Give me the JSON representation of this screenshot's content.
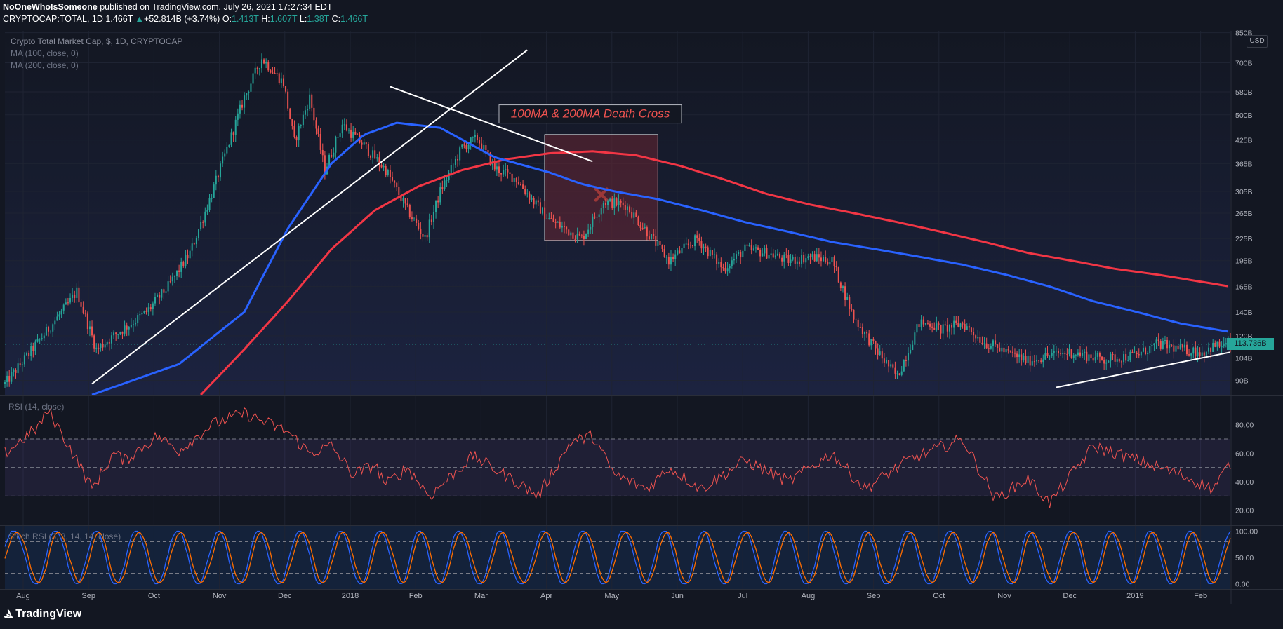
{
  "header": {
    "publisher": "NoOneWhoIsSomeone",
    "published_text": "published on TradingView.com, July 26, 2021 17:27:34 EDT",
    "symbol": "CRYPTOCAP:TOTAL, 1D",
    "last": "1.466T",
    "change_arrow": "▲",
    "change": "+52.814B (+3.74%)",
    "o_label": "O:",
    "o_value": "1.413T",
    "h_label": "H:",
    "h_value": "1.607T",
    "l_label": "L:",
    "l_value": "1.38T",
    "c_label": "C:",
    "c_value": "1.466T"
  },
  "legend": {
    "title": "Crypto Total Market Cap, $, 1D, CRYPTOCAP",
    "ma100": "MA (100, close, 0)",
    "ma200": "MA (200, close, 0)",
    "rsi": "RSI (14, close)",
    "stoch": "Stoch RSI (3, 3, 14, 14, close)"
  },
  "annotation": {
    "text": "100MA & 200MA Death Cross"
  },
  "currency_badge": "USD",
  "last_price_label": "113.736B",
  "footer": {
    "logo": "TradingView",
    "logo_mark": "Ⳛ"
  },
  "colors": {
    "background": "#131722",
    "up": "#26a69a",
    "down": "#ef5350",
    "ma100": "#2962ff",
    "ma200": "#f23645",
    "rsi": "#ef5350",
    "stoch_k": "#2962ff",
    "stoch_d": "#ff6d00",
    "trendline": "#ffffff"
  },
  "chart_data": [
    {
      "type": "candlestick",
      "title": "Crypto Total Market Cap, $, 1D, CRYPTOCAP",
      "x_ticks": [
        "Aug",
        "Sep",
        "Oct",
        "Nov",
        "Dec",
        "2018",
        "Feb",
        "Mar",
        "Apr",
        "May",
        "Jun",
        "Jul",
        "Aug",
        "Sep",
        "Oct",
        "Nov",
        "Dec",
        "2019",
        "Feb"
      ],
      "y_scale": "log",
      "y_ticks": [
        "850B",
        "700B",
        "580B",
        "500B",
        "425B",
        "365B",
        "305B",
        "265B",
        "225B",
        "195B",
        "165B",
        "140B",
        "120B",
        "104B",
        "90B"
      ],
      "y_tick_values": [
        850,
        700,
        580,
        500,
        425,
        365,
        305,
        265,
        225,
        195,
        165,
        140,
        120,
        104,
        90
      ],
      "y_unit": "B USD",
      "y_range": [
        82,
        860
      ],
      "x_range_days": [
        0,
        563
      ],
      "price_path_days": [
        0,
        30,
        33,
        42,
        50,
        65,
        75,
        85,
        95,
        110,
        118,
        128,
        133,
        140,
        147,
        155,
        165,
        175,
        185,
        193,
        200,
        210,
        217,
        225,
        235,
        243,
        250,
        257,
        265,
        275,
        285,
        295,
        305,
        318,
        330,
        340,
        350,
        360,
        370,
        380,
        390,
        400,
        410,
        420,
        425,
        430,
        440,
        450,
        455,
        460,
        465,
        470,
        480,
        490,
        505,
        520,
        530,
        540,
        550,
        555,
        563
      ],
      "price_path_values": [
        88,
        150,
        160,
        110,
        120,
        140,
        165,
        205,
        300,
        560,
        720,
        615,
        420,
        560,
        350,
        470,
        410,
        350,
        270,
        225,
        305,
        405,
        430,
        355,
        330,
        285,
        255,
        240,
        225,
        285,
        280,
        235,
        195,
        225,
        185,
        210,
        205,
        195,
        200,
        195,
        135,
        110,
        92,
        130,
        130,
        125,
        130,
        115,
        112,
        108,
        105,
        102,
        106,
        108,
        103,
        106,
        114,
        110,
        108,
        112,
        113.7
      ],
      "series": [
        {
          "name": "MA (100, close, 0)",
          "x_days": [
            40,
            80,
            110,
            130,
            150,
            165,
            180,
            200,
            225,
            250,
            265,
            280,
            300,
            320,
            340,
            360,
            380,
            400,
            420,
            440,
            460,
            480,
            500,
            520,
            540,
            563
          ],
          "values": [
            82,
            100,
            140,
            240,
            365,
            440,
            475,
            460,
            380,
            345,
            320,
            305,
            290,
            270,
            250,
            235,
            220,
            210,
            200,
            190,
            178,
            165,
            150,
            140,
            130,
            123
          ]
        },
        {
          "name": "MA (200, close, 0)",
          "x_days": [
            90,
            110,
            130,
            150,
            170,
            190,
            210,
            230,
            250,
            270,
            290,
            310,
            330,
            350,
            370,
            390,
            410,
            430,
            450,
            470,
            490,
            510,
            530,
            550,
            563
          ],
          "values": [
            82,
            110,
            150,
            210,
            270,
            315,
            350,
            375,
            390,
            395,
            385,
            360,
            330,
            300,
            280,
            265,
            250,
            235,
            220,
            205,
            195,
            185,
            178,
            170,
            165
          ]
        }
      ],
      "trendlines": [
        {
          "x_days": [
            40,
            240
          ],
          "values": [
            88,
            760
          ]
        },
        {
          "x_days": [
            177,
            270
          ],
          "values": [
            600,
            370
          ]
        },
        {
          "x_days": [
            483,
            563
          ],
          "values": [
            86,
            108
          ]
        }
      ],
      "annotation_zone": {
        "x_days": [
          248,
          300
        ],
        "values": [
          440,
          222
        ]
      }
    },
    {
      "type": "line",
      "name": "RSI (14, close)",
      "y_ticks": [
        "80.00",
        "60.00",
        "40.00",
        "20.00"
      ],
      "y_range": [
        10,
        100
      ],
      "bands": [
        70,
        50,
        30
      ],
      "x_days": [
        0,
        15,
        20,
        35,
        40,
        50,
        55,
        70,
        80,
        95,
        110,
        130,
        140,
        150,
        160,
        170,
        175,
        185,
        195,
        215,
        235,
        245,
        260,
        270,
        280,
        295,
        305,
        320,
        340,
        360,
        380,
        395,
        415,
        440,
        455,
        470,
        480,
        500,
        520,
        540,
        555,
        563
      ],
      "values": [
        60,
        78,
        90,
        50,
        35,
        60,
        55,
        72,
        62,
        80,
        88,
        75,
        60,
        65,
        45,
        52,
        38,
        50,
        30,
        58,
        40,
        30,
        68,
        72,
        45,
        35,
        50,
        35,
        55,
        40,
        60,
        35,
        55,
        70,
        28,
        42,
        25,
        65,
        55,
        45,
        35,
        53
      ]
    },
    {
      "type": "line",
      "name": "Stoch RSI (3, 3, 14, 14, close)",
      "y_ticks": [
        "100.00",
        "50.00",
        "0.00"
      ],
      "y_range": [
        -10,
        110
      ],
      "bands": [
        80,
        20
      ],
      "cycle_days": 19,
      "series_names": [
        "K",
        "D"
      ]
    }
  ]
}
